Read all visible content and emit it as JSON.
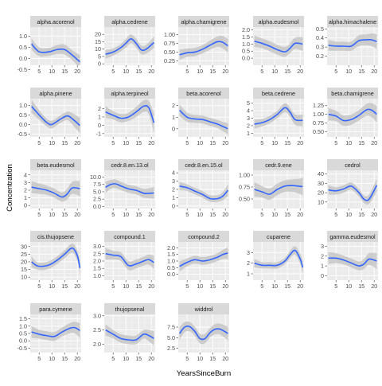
{
  "chart_data": {
    "type": "line",
    "facet_layout": "wrap",
    "ncol": 5,
    "xlabel": "YearsSinceBurn",
    "ylabel": "Concentration",
    "x_ticks": [
      5,
      10,
      15,
      20
    ],
    "xlim": [
      1.5,
      21.5
    ],
    "grid": true,
    "legend": "none",
    "colors": {
      "panel_bg": "#EBEBEB",
      "grid_major": "#FFFFFF",
      "grid_minor": "#F5F5F5",
      "strip_bg": "#D9D9D9",
      "ribbon": "#BEBEBE",
      "line": "#3366FF",
      "tick_text": "#4D4D4D",
      "tick_mark": "#333333"
    },
    "panels": [
      {
        "name": "alpha.acorenol",
        "ylim": [
          -0.3,
          1.4
        ],
        "yticks": [
          -0.5,
          0.0,
          0.5,
          1.0
        ],
        "x": [
          2,
          5,
          9,
          12,
          15,
          18,
          21
        ],
        "y": [
          0.65,
          0.3,
          0.3,
          0.4,
          0.4,
          0.15,
          -0.15
        ],
        "band": [
          0.25,
          0.2,
          0.18,
          0.2,
          0.22,
          0.22,
          0.3
        ]
      },
      {
        "name": "alpha.cedrene",
        "ylim": [
          -1,
          25
        ],
        "yticks": [
          0,
          5,
          10,
          15,
          20
        ],
        "x": [
          2,
          5,
          8,
          10,
          12,
          14,
          16,
          18,
          21
        ],
        "y": [
          6.5,
          8,
          11,
          14,
          17,
          14,
          9.5,
          10,
          14.5
        ],
        "band": [
          3,
          2.5,
          2.5,
          3,
          3,
          3,
          3,
          3,
          4
        ]
      },
      {
        "name": "alpha.chamigrene",
        "ylim": [
          0.12,
          1.22
        ],
        "yticks": [
          0.25,
          0.5,
          0.75,
          1.0
        ],
        "x": [
          2,
          5,
          8,
          11,
          14,
          17,
          19,
          21
        ],
        "y": [
          0.42,
          0.48,
          0.5,
          0.58,
          0.7,
          0.8,
          0.78,
          0.68
        ],
        "band": [
          0.15,
          0.12,
          0.12,
          0.12,
          0.13,
          0.15,
          0.18,
          0.2
        ]
      },
      {
        "name": "alpha.eudesmol",
        "ylim": [
          -0.5,
          2.2
        ],
        "yticks": [
          0.0,
          0.5,
          1.0,
          1.5,
          2.0
        ],
        "x": [
          2,
          5,
          8,
          11,
          14,
          16,
          18,
          21
        ],
        "y": [
          1.2,
          1.05,
          0.85,
          0.6,
          0.45,
          0.7,
          1.05,
          1.0
        ],
        "band": [
          0.4,
          0.35,
          0.35,
          0.35,
          0.35,
          0.35,
          0.4,
          0.5
        ]
      },
      {
        "name": "alpha.himachalene",
        "ylim": [
          0.1,
          0.52
        ],
        "yticks": [
          0.2,
          0.3,
          0.4,
          0.5
        ],
        "x": [
          2,
          5,
          8,
          11,
          14,
          17,
          19,
          21
        ],
        "y": [
          0.32,
          0.31,
          0.31,
          0.31,
          0.37,
          0.38,
          0.38,
          0.36
        ],
        "band": [
          0.06,
          0.05,
          0.05,
          0.05,
          0.06,
          0.06,
          0.07,
          0.08
        ]
      },
      {
        "name": "alpha.pinene",
        "ylim": [
          -0.65,
          1.35
        ],
        "yticks": [
          -0.5,
          0.0,
          0.5,
          1.0
        ],
        "x": [
          2,
          5,
          8,
          10,
          13,
          16,
          18,
          21
        ],
        "y": [
          0.95,
          0.5,
          0.1,
          0.0,
          0.25,
          0.45,
          0.3,
          -0.05
        ],
        "band": [
          0.35,
          0.25,
          0.2,
          0.2,
          0.2,
          0.22,
          0.3,
          0.4
        ]
      },
      {
        "name": "alpha.terpineol",
        "ylim": [
          -1.4,
          3.2
        ],
        "yticks": [
          -1,
          0,
          1,
          2
        ],
        "x": [
          2,
          5,
          8,
          11,
          14,
          17,
          19,
          21
        ],
        "y": [
          1.6,
          1.2,
          0.85,
          1.0,
          1.6,
          2.3,
          2.1,
          0.3
        ],
        "band": [
          0.7,
          0.5,
          0.5,
          0.5,
          0.6,
          0.7,
          0.8,
          1.2
        ]
      },
      {
        "name": "beta.acorenol",
        "ylim": [
          -0.7,
          2.6
        ],
        "yticks": [
          0,
          1,
          2
        ],
        "x": [
          2,
          5,
          8,
          11,
          14,
          17,
          19,
          21
        ],
        "y": [
          1.6,
          1.0,
          0.85,
          0.8,
          0.6,
          0.4,
          0.2,
          0.0
        ],
        "band": [
          0.5,
          0.4,
          0.35,
          0.35,
          0.35,
          0.35,
          0.4,
          0.5
        ]
      },
      {
        "name": "beta.cedrene",
        "ylim": [
          0.5,
          5.6
        ],
        "yticks": [
          1,
          2,
          3,
          4,
          5
        ],
        "x": [
          2,
          5,
          8,
          11,
          14,
          16,
          18,
          21
        ],
        "y": [
          2.2,
          2.4,
          2.8,
          3.5,
          4.4,
          3.8,
          2.8,
          2.7
        ],
        "band": [
          0.6,
          0.5,
          0.5,
          0.5,
          0.6,
          0.6,
          0.7,
          0.8
        ]
      },
      {
        "name": "beta.chamigrene",
        "ylim": [
          0.35,
          1.45
        ],
        "yticks": [
          0.5,
          0.75,
          1.0,
          1.25
        ],
        "x": [
          2,
          5,
          8,
          11,
          14,
          17,
          19,
          21
        ],
        "y": [
          1.0,
          0.95,
          0.82,
          0.85,
          0.97,
          1.13,
          1.12,
          1.0
        ],
        "band": [
          0.18,
          0.15,
          0.15,
          0.15,
          0.15,
          0.17,
          0.2,
          0.24
        ]
      },
      {
        "name": "beta.eudesmol",
        "ylim": [
          -0.4,
          4.6
        ],
        "yticks": [
          0,
          1,
          2,
          3,
          4
        ],
        "x": [
          2,
          5,
          8,
          11,
          14,
          16,
          18,
          21
        ],
        "y": [
          2.4,
          2.2,
          2.0,
          1.6,
          1.1,
          1.5,
          2.3,
          2.2
        ],
        "band": [
          0.8,
          0.7,
          0.6,
          0.6,
          0.6,
          0.7,
          0.8,
          1.0
        ]
      },
      {
        "name": "cedr.8.en.13.ol",
        "ylim": [
          -0.7,
          12.3
        ],
        "yticks": [
          0.0,
          2.5,
          5.0,
          7.5,
          10.0
        ],
        "x": [
          2,
          4,
          6,
          8,
          11,
          14,
          17,
          19,
          21
        ],
        "y": [
          6.5,
          7.5,
          7.7,
          7.0,
          6.0,
          5.5,
          4.5,
          4.5,
          4.6
        ],
        "band": [
          2.0,
          1.5,
          1.5,
          1.4,
          1.4,
          1.4,
          1.5,
          1.7,
          2.0
        ]
      },
      {
        "name": "cedr.8.en.15.ol",
        "ylim": [
          -0.3,
          4.3
        ],
        "yticks": [
          0,
          1,
          2,
          3,
          4
        ],
        "x": [
          2,
          5,
          8,
          11,
          14,
          17,
          19,
          21
        ],
        "y": [
          2.4,
          2.2,
          1.8,
          1.4,
          0.9,
          0.9,
          1.2,
          1.9
        ],
        "band": [
          0.5,
          0.4,
          0.4,
          0.4,
          0.4,
          0.4,
          0.5,
          0.7
        ]
      },
      {
        "name": "cedr.9.ene",
        "ylim": [
          0.3,
          1.1
        ],
        "yticks": [
          0.5,
          0.75,
          1.0
        ],
        "x": [
          2,
          5,
          8,
          11,
          14,
          17,
          19,
          21
        ],
        "y": [
          0.7,
          0.65,
          0.6,
          0.7,
          0.77,
          0.78,
          0.77,
          0.76
        ],
        "band": [
          0.15,
          0.12,
          0.12,
          0.12,
          0.12,
          0.13,
          0.15,
          0.18
        ]
      },
      {
        "name": "cedrol",
        "ylim": [
          3,
          44
        ],
        "yticks": [
          10,
          20,
          30,
          40
        ],
        "x": [
          2,
          5,
          8,
          11,
          14,
          16,
          18,
          21
        ],
        "y": [
          23,
          22,
          24,
          27,
          20,
          13,
          13,
          28
        ],
        "band": [
          5,
          4,
          4,
          4,
          4,
          4,
          5,
          7
        ]
      },
      {
        "name": "cis.thujopsene",
        "ylim": [
          8,
          33
        ],
        "yticks": [
          10,
          15,
          20,
          25,
          30
        ],
        "x": [
          2,
          4,
          6,
          9,
          12,
          15,
          18,
          20,
          21
        ],
        "y": [
          20,
          17.5,
          17,
          18,
          21,
          25,
          29,
          24,
          16
        ],
        "band": [
          3.5,
          2.5,
          2.5,
          2.5,
          2.5,
          2.7,
          3,
          3.5,
          4.5
        ]
      },
      {
        "name": "compound.1",
        "ylim": [
          0.7,
          3.3
        ],
        "yticks": [
          1.0,
          1.5,
          2.0,
          2.5,
          3.0
        ],
        "x": [
          2,
          5,
          8,
          11,
          14,
          17,
          19,
          21
        ],
        "y": [
          2.5,
          2.4,
          2.3,
          1.7,
          1.8,
          2.0,
          2.1,
          1.9
        ],
        "band": [
          0.4,
          0.3,
          0.3,
          0.3,
          0.3,
          0.3,
          0.35,
          0.45
        ]
      },
      {
        "name": "compound.2",
        "ylim": [
          -0.45,
          2.45
        ],
        "yticks": [
          0.0,
          0.5,
          1.0,
          1.5,
          2.0
        ],
        "x": [
          2,
          5,
          8,
          11,
          14,
          17,
          19,
          21
        ],
        "y": [
          0.6,
          0.9,
          1.1,
          1.0,
          1.1,
          1.3,
          1.5,
          1.6
        ],
        "band": [
          0.4,
          0.3,
          0.3,
          0.3,
          0.3,
          0.3,
          0.35,
          0.45
        ]
      },
      {
        "name": "cuparene",
        "ylim": [
          0.4,
          4.0
        ],
        "yticks": [
          1,
          2,
          3
        ],
        "x": [
          2,
          5,
          8,
          11,
          14,
          16,
          18,
          20,
          21
        ],
        "y": [
          2.0,
          1.8,
          1.8,
          1.8,
          2.2,
          2.8,
          3.2,
          2.4,
          1.6
        ],
        "band": [
          0.4,
          0.3,
          0.3,
          0.3,
          0.3,
          0.35,
          0.4,
          0.5,
          0.6
        ]
      },
      {
        "name": "gamma.eudesmol",
        "ylim": [
          -0.45,
          3.45
        ],
        "yticks": [
          0,
          1,
          2,
          3
        ],
        "x": [
          2,
          5,
          8,
          11,
          14,
          16,
          18,
          21
        ],
        "y": [
          1.8,
          1.8,
          1.6,
          1.3,
          1.0,
          1.2,
          1.7,
          1.5
        ],
        "band": [
          0.6,
          0.5,
          0.45,
          0.45,
          0.45,
          0.5,
          0.6,
          0.8
        ]
      },
      {
        "name": "para.cymene",
        "ylim": [
          -0.8,
          1.8
        ],
        "yticks": [
          -0.5,
          0.0,
          0.5,
          1.0,
          1.5
        ],
        "x": [
          2,
          5,
          8,
          11,
          14,
          17,
          19,
          21
        ],
        "y": [
          0.6,
          0.45,
          0.35,
          0.3,
          0.6,
          0.85,
          0.9,
          0.7
        ],
        "band": [
          0.4,
          0.3,
          0.3,
          0.3,
          0.3,
          0.35,
          0.4,
          0.5
        ]
      },
      {
        "name": "thujopsenal",
        "ylim": [
          1.7,
          3.05
        ],
        "yticks": [
          2.0,
          2.5,
          3.0
        ],
        "x": [
          2,
          5,
          8,
          11,
          14,
          17,
          19,
          21
        ],
        "y": [
          2.5,
          2.35,
          2.2,
          2.15,
          2.15,
          2.35,
          2.3,
          2.2
        ],
        "band": [
          0.2,
          0.15,
          0.15,
          0.15,
          0.15,
          0.15,
          0.2,
          0.25
        ]
      },
      {
        "name": "widdrol",
        "ylim": [
          1.5,
          10.5
        ],
        "yticks": [
          2.5,
          5.0,
          7.5
        ],
        "x": [
          2,
          4,
          6,
          8,
          10,
          12,
          14,
          16,
          18,
          21
        ],
        "y": [
          6.0,
          7.5,
          7.6,
          6.5,
          4.8,
          4.8,
          6.2,
          7.0,
          7.0,
          6.0
        ],
        "band": [
          1.5,
          1.2,
          1.1,
          1.1,
          1.1,
          1.1,
          1.1,
          1.2,
          1.3,
          1.6
        ]
      }
    ]
  }
}
